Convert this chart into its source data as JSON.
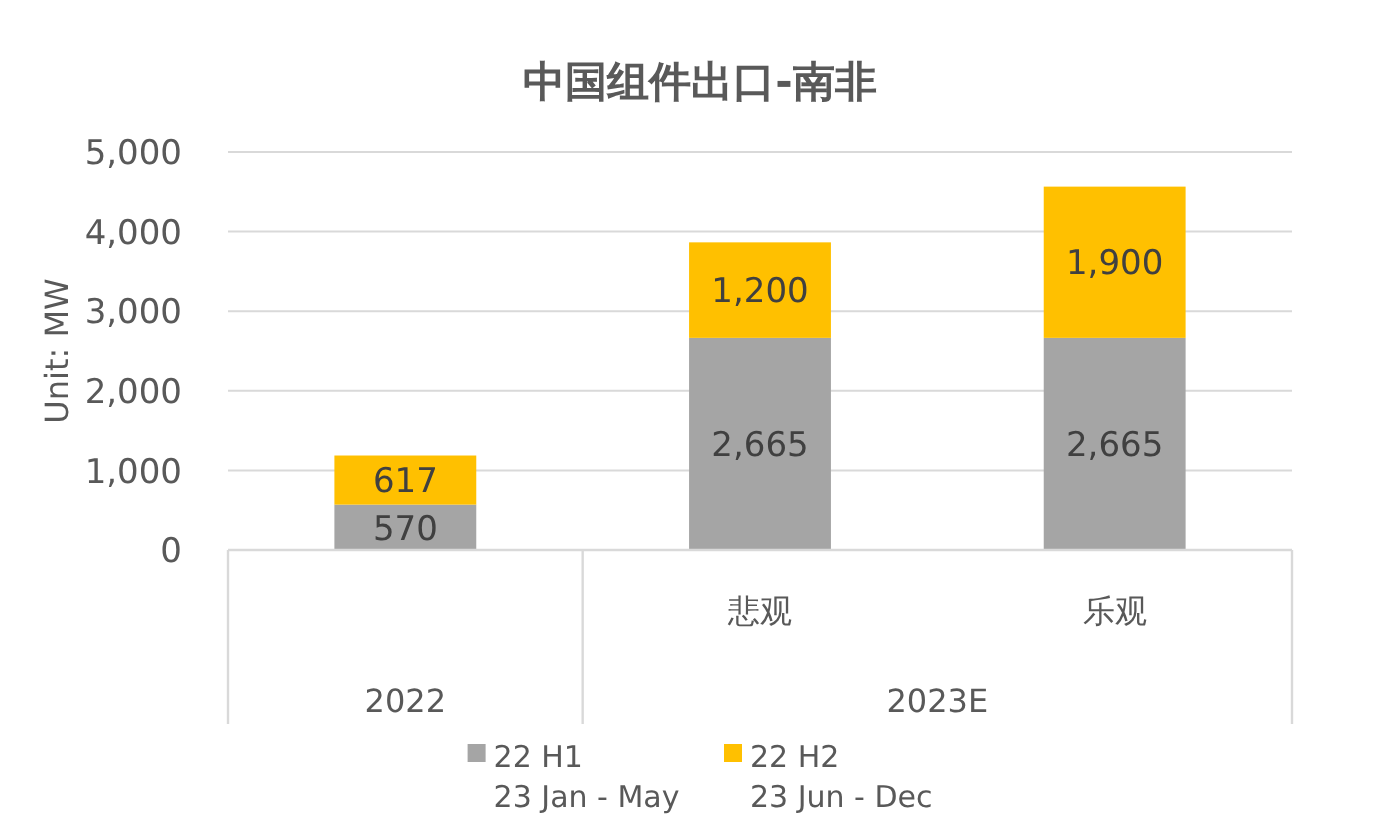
{
  "chart_data": {
    "type": "bar",
    "title": "中国组件出口-南非",
    "ylabel": "Unit: MW",
    "categories": [
      null,
      "悲观",
      "乐观"
    ],
    "annotations": [
      "2022",
      "2023E"
    ],
    "stacked": true,
    "series": [
      {
        "name": "22 H1\n23 Jan - May",
        "color": "#a5a5a5",
        "values": [
          570,
          2665,
          2665
        ],
        "value_labels": [
          "570",
          "2,665",
          "2,665"
        ]
      },
      {
        "name": "22 H2\n23 Jun - Dec",
        "color": "#ffc000",
        "values": [
          617,
          1200,
          1900
        ],
        "value_labels": [
          "617",
          "1,200",
          "1,900"
        ]
      }
    ],
    "ylim": [
      0,
      5000
    ],
    "yticks": [
      0,
      {
        "value": 1000,
        "label": "1,000"
      },
      {
        "value": 2000,
        "label": "2,000"
      },
      {
        "value": 3000,
        "label": "3,000"
      },
      {
        "value": 4000,
        "label": "4,000"
      },
      {
        "value": 5000,
        "label": "5,000"
      }
    ],
    "grid": "y",
    "legend": "bottom"
  }
}
